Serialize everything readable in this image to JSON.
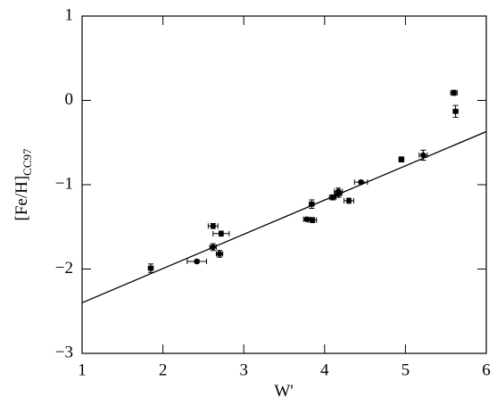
{
  "chart_data": {
    "type": "scatter",
    "xlabel": "W'",
    "ylabel": "[Fe/H]",
    "ylabel_subscript": "CC97",
    "x": [
      1.85,
      2.42,
      2.62,
      2.62,
      2.7,
      2.72,
      3.78,
      3.85,
      3.84,
      4.1,
      4.17,
      4.17,
      4.3,
      4.45,
      4.95,
      5.22,
      5.6,
      5.62
    ],
    "y": [
      -1.99,
      -1.91,
      -1.49,
      -1.74,
      -1.82,
      -1.58,
      -1.41,
      -1.42,
      -1.23,
      -1.15,
      -1.08,
      -1.11,
      -1.19,
      -0.97,
      -0.7,
      -0.65,
      0.09,
      -0.13
    ],
    "x_err": [
      0.03,
      0.12,
      0.06,
      0.04,
      0.04,
      0.1,
      0.04,
      0.05,
      0.03,
      0.04,
      0.05,
      0.04,
      0.06,
      0.08,
      0.03,
      0.05,
      0.04,
      0.03
    ],
    "y_err": [
      0.05,
      0.02,
      0.03,
      0.04,
      0.04,
      0.03,
      0.02,
      0.03,
      0.05,
      0.03,
      0.04,
      0.04,
      0.03,
      0.02,
      0.03,
      0.06,
      0.03,
      0.07
    ],
    "color": "#000000",
    "fit": {
      "x": [
        1,
        6
      ],
      "y": [
        -2.4,
        -0.37
      ]
    },
    "xlim": [
      1,
      6
    ],
    "ylim": [
      -3,
      1
    ],
    "xticks": [
      1,
      2,
      3,
      4,
      5,
      6
    ],
    "yticks": [
      {
        "value": -3,
        "label": "−3"
      },
      {
        "value": -2,
        "label": "−2"
      },
      {
        "value": -1,
        "label": "−1"
      },
      0,
      1
    ]
  }
}
